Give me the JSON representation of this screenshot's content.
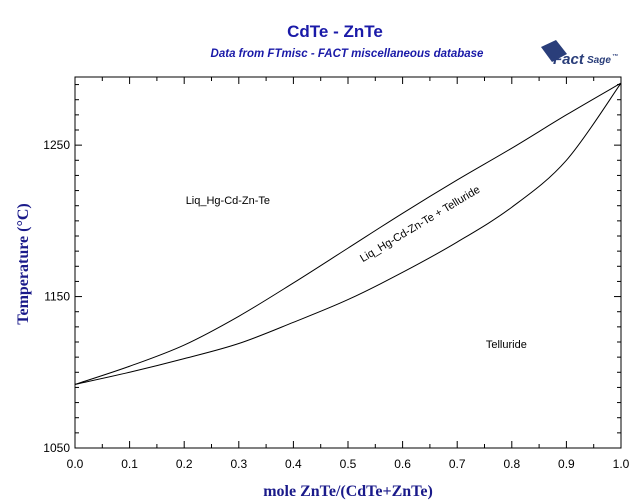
{
  "chart_data": {
    "type": "line",
    "title": "CdTe - ZnTe",
    "subtitle": "Data from FTmisc - FACT miscellaneous database",
    "xlabel": "mole ZnTe/(CdTe+ZnTe)",
    "ylabel": "Temperature (°C)",
    "xlim": [
      0,
      1
    ],
    "ylim": [
      1050,
      1295
    ],
    "x_ticks": [
      "0.0",
      "0.1",
      "0.2",
      "0.3",
      "0.4",
      "0.5",
      "0.6",
      "0.7",
      "0.8",
      "0.9",
      "1.0"
    ],
    "y_ticks": [
      "1050",
      "1150",
      "1250"
    ],
    "series": [
      {
        "x": [
          0,
          0.1,
          0.2,
          0.3,
          0.4,
          0.5,
          0.6,
          0.7,
          0.8,
          0.9,
          1.0
        ],
        "values": [
          1092,
          1104,
          1118,
          1137,
          1159,
          1182,
          1205,
          1227,
          1248,
          1270,
          1291
        ]
      },
      {
        "x": [
          0,
          0.1,
          0.2,
          0.3,
          0.4,
          0.5,
          0.6,
          0.7,
          0.8,
          0.9,
          1.0
        ],
        "values": [
          1092,
          1100,
          1109,
          1119,
          1133,
          1148,
          1166,
          1186,
          1209,
          1240,
          1291
        ]
      }
    ],
    "annotations": [
      {
        "text": "Liq_Hg-Cd-Zn-Te",
        "x": 0.28,
        "y": 1211,
        "rotation": 0
      },
      {
        "text": "Liq_Hg-Cd-Zn-Te + Telluride",
        "x": 0.635,
        "y": 1196,
        "rotation": -31
      },
      {
        "text": "Telluride",
        "x": 0.79,
        "y": 1116,
        "rotation": 0
      }
    ],
    "grid": false
  },
  "logo": {
    "name": "factsage-logo",
    "text_main": "Fact",
    "text_sub": "Sage",
    "mark": "™"
  }
}
